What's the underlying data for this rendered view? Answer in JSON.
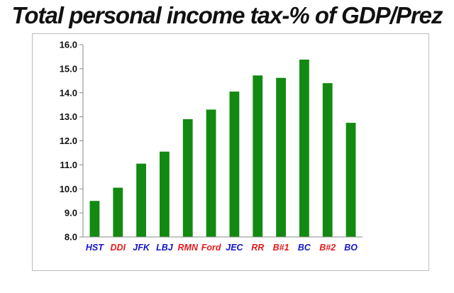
{
  "chart_data": {
    "type": "bar",
    "title": "Total personal income tax-% of GDP/Prez",
    "categories": [
      "HST",
      "DDI",
      "JFK",
      "LBJ",
      "RMN",
      "Ford",
      "JEC",
      "RR",
      "B#1",
      "BC",
      "B#2",
      "BO"
    ],
    "values": [
      9.5,
      10.05,
      11.05,
      11.55,
      12.9,
      13.3,
      14.05,
      14.72,
      14.62,
      15.38,
      14.4,
      12.75
    ],
    "category_colors": [
      "#1515c8",
      "#e01b1b",
      "#1515c8",
      "#1515c8",
      "#e01b1b",
      "#e01b1b",
      "#1515c8",
      "#e01b1b",
      "#e01b1b",
      "#1515c8",
      "#e01b1b",
      "#1515c8"
    ],
    "yticks": [
      "8.0",
      "9.0",
      "10.0",
      "11.0",
      "12.0",
      "13.0",
      "14.0",
      "15.0",
      "16.0"
    ],
    "ylim": [
      8,
      16
    ],
    "xlabel": "",
    "ylabel": "",
    "bar_color": "#128a12",
    "grid": false,
    "legend": "none"
  }
}
